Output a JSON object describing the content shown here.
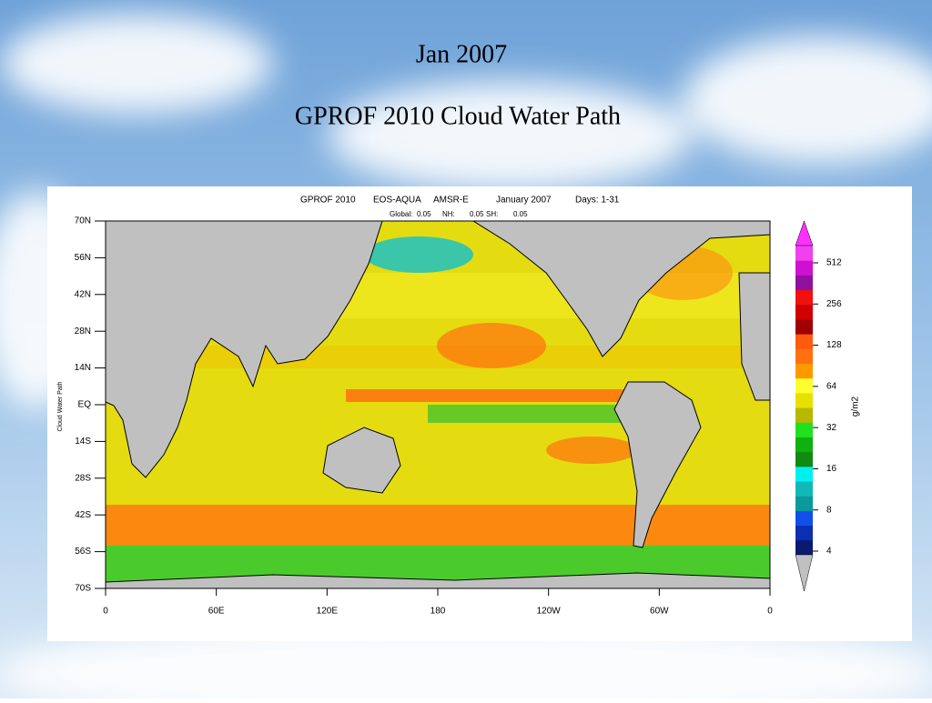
{
  "slide": {
    "title": "Jan 2007",
    "subtitle": "GPROF 2010 Cloud Water Path"
  },
  "map": {
    "header": [
      "GPROF 2010",
      "EOS-AQUA",
      "AMSR-E",
      "January 2007",
      "Days: 1-31"
    ],
    "stats": [
      {
        "label": "Global:",
        "value": 0.05
      },
      {
        "label": "NH:",
        "value": 0.05
      },
      {
        "label": "SH:",
        "value": 0.05
      }
    ],
    "y_axis_label": "Cloud Water Path",
    "lat_labels": [
      "70N",
      "56N",
      "42N",
      "28N",
      "14N",
      "EQ",
      "14S",
      "28S",
      "42S",
      "56S",
      "70S"
    ],
    "lon_labels": [
      "0",
      "60E",
      "120E",
      "180",
      "120W",
      "60W",
      "0"
    ],
    "colorbar": {
      "unit": "g/m2",
      "log": true,
      "ticks": [
        4,
        8,
        16,
        32,
        64,
        128,
        256,
        512
      ],
      "colors": [
        "#0a1a6e",
        "#0a2fb0",
        "#1050e8",
        "#0a9a9a",
        "#10b8b8",
        "#00f0f0",
        "#108a10",
        "#10b010",
        "#20e020",
        "#b8b800",
        "#e8e000",
        "#ffff30",
        "#ff9900",
        "#ff7010",
        "#ff5a10",
        "#a00000",
        "#d00000",
        "#f01010",
        "#9010a0",
        "#d010d0",
        "#f040f0"
      ],
      "over_color": "#ff30ff",
      "under_color": "#c0c0c0"
    }
  }
}
